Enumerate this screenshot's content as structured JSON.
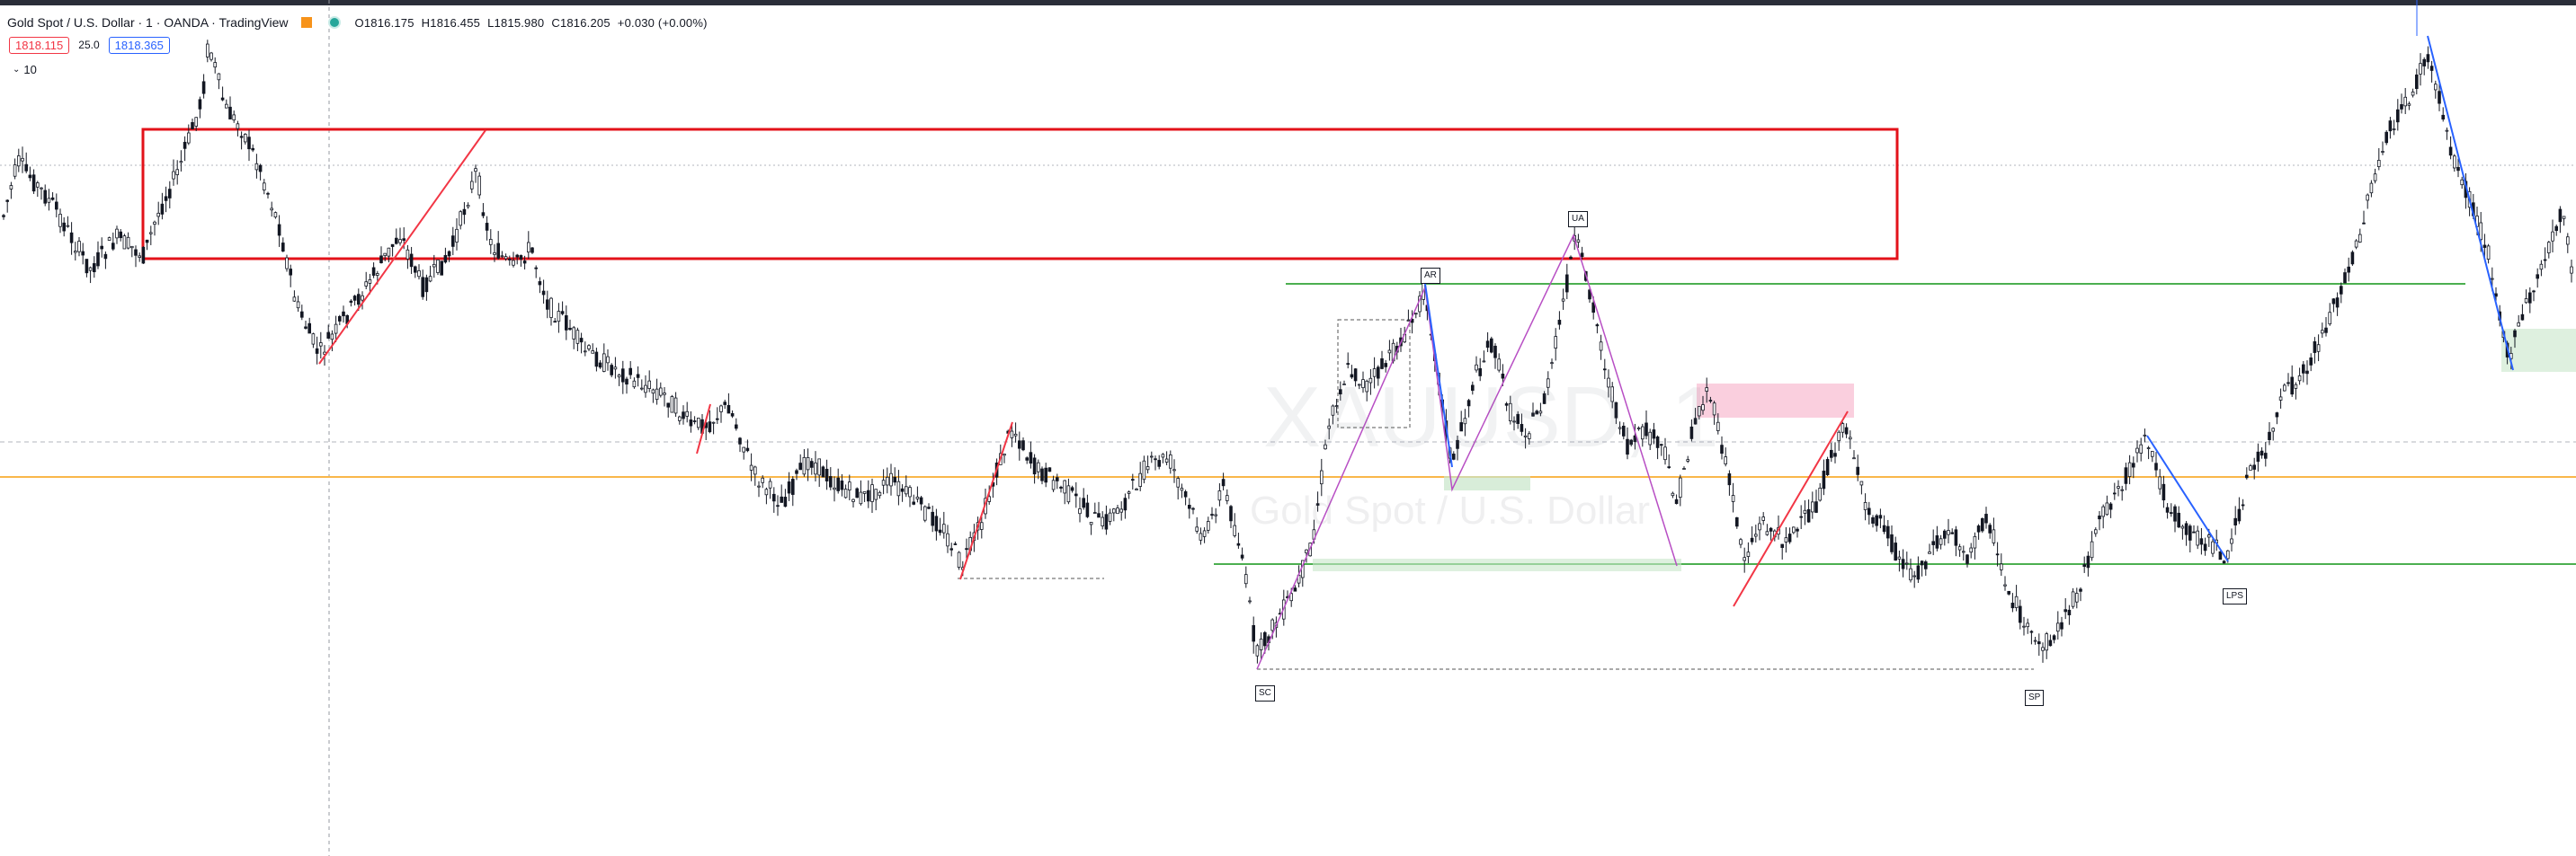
{
  "legend": {
    "symbol": "Gold Spot / U.S. Dollar · 1 · OANDA · TradingView",
    "open": "O1816.175",
    "high": "H1816.455",
    "low": "L1815.980",
    "close": "C1816.205",
    "change": "+0.030 (+0.00%)"
  },
  "quote": {
    "bid": "1818.115",
    "spread": "25.0",
    "ask": "1818.365"
  },
  "indicators": {
    "collapse_icon": "chevron-down-icon",
    "count": "10"
  },
  "watermark": {
    "symbol": "XAUUSD, 1",
    "description": "Gold Spot / U.S. Dollar"
  },
  "annotations": {
    "ar": "AR",
    "ua": "UA",
    "sc": "SC",
    "sp": "SP",
    "lps": "LPS"
  },
  "colors": {
    "candle": "#131722",
    "zone_box": "#e3121a",
    "resistance_line": "#4caf50",
    "orange_line": "#f9b74a",
    "trend_red": "#f23645",
    "trend_blue": "#2962ff",
    "trend_purple": "#b84fc4",
    "green_zone": "#c8e6c9",
    "pink_zone": "#f8bbd0"
  }
}
